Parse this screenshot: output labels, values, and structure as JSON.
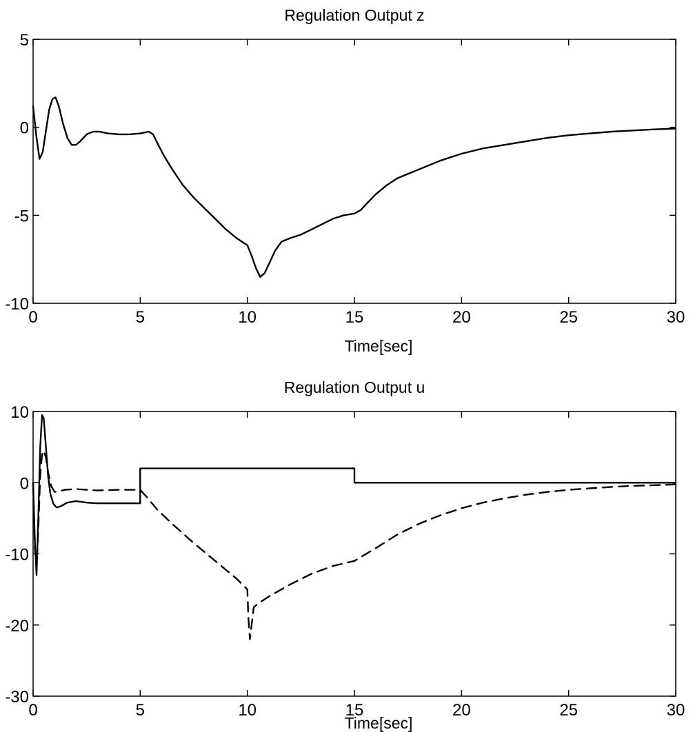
{
  "chart_data": [
    {
      "type": "line",
      "title": "Regulation Output z",
      "xlabel": "Time[sec]",
      "ylabel": "",
      "xlim": [
        0,
        30
      ],
      "ylim": [
        -10,
        5
      ],
      "xticks": [
        "0",
        "5",
        "10",
        "15",
        "20",
        "25",
        "30"
      ],
      "yticks": [
        "5",
        "0",
        "-5",
        "-10"
      ],
      "grid": false,
      "series": [
        {
          "style": "solid",
          "color": "#000000",
          "x": [
            0,
            0.15,
            0.3,
            0.45,
            0.6,
            0.75,
            0.9,
            1.05,
            1.2,
            1.4,
            1.6,
            1.8,
            2.0,
            2.2,
            2.5,
            2.8,
            3.1,
            3.5,
            4.0,
            4.5,
            5.0,
            5.2,
            5.4,
            5.6,
            5.8,
            6.1,
            6.5,
            7.0,
            7.5,
            8.0,
            8.5,
            9.0,
            9.5,
            10.0,
            10.2,
            10.4,
            10.6,
            10.8,
            11.0,
            11.3,
            11.6,
            12.0,
            12.5,
            13.0,
            13.5,
            14.0,
            14.5,
            15.0,
            15.3,
            15.6,
            16.0,
            16.5,
            17.0,
            18.0,
            19.0,
            20.0,
            21.0,
            22.0,
            23.0,
            24.0,
            25.0,
            26.0,
            27.0,
            28.0,
            29.0,
            30.0
          ],
          "y": [
            1.2,
            -0.5,
            -1.8,
            -1.4,
            -0.2,
            1.0,
            1.6,
            1.7,
            1.2,
            0.2,
            -0.6,
            -1.0,
            -1.0,
            -0.8,
            -0.4,
            -0.25,
            -0.25,
            -0.35,
            -0.4,
            -0.4,
            -0.35,
            -0.3,
            -0.25,
            -0.4,
            -0.9,
            -1.6,
            -2.4,
            -3.3,
            -4.0,
            -4.6,
            -5.2,
            -5.8,
            -6.3,
            -6.7,
            -7.3,
            -8.0,
            -8.5,
            -8.3,
            -7.8,
            -7.0,
            -6.5,
            -6.3,
            -6.1,
            -5.8,
            -5.5,
            -5.2,
            -5.0,
            -4.9,
            -4.7,
            -4.3,
            -3.8,
            -3.3,
            -2.9,
            -2.4,
            -1.9,
            -1.5,
            -1.2,
            -1.0,
            -0.8,
            -0.6,
            -0.45,
            -0.35,
            -0.25,
            -0.18,
            -0.12,
            -0.07
          ]
        }
      ]
    },
    {
      "type": "line",
      "title": "Regulation Output u",
      "xlabel": "Time[sec]",
      "ylabel": "",
      "xlim": [
        0,
        30
      ],
      "ylim": [
        -30,
        10
      ],
      "xticks": [
        "0",
        "5",
        "10",
        "15",
        "20",
        "25",
        "30"
      ],
      "yticks": [
        "10",
        "0",
        "-10",
        "-20",
        "-30"
      ],
      "grid": false,
      "series": [
        {
          "style": "solid",
          "color": "#000000",
          "x": [
            0,
            0.08,
            0.16,
            0.25,
            0.33,
            0.42,
            0.5,
            0.6,
            0.7,
            0.8,
            0.95,
            1.1,
            1.3,
            1.6,
            2.0,
            2.5,
            3.0,
            4.0,
            5.0,
            5.0,
            6.0,
            8.0,
            10.0,
            12.0,
            15.0,
            15.0,
            18.0,
            20.0,
            25.0,
            30.0
          ],
          "y": [
            0,
            -8,
            -13,
            -4,
            5,
            9.5,
            9,
            5,
            1,
            -1.5,
            -3,
            -3.5,
            -3.3,
            -2.8,
            -2.6,
            -2.8,
            -2.9,
            -2.9,
            -2.9,
            2,
            2,
            2,
            2,
            2,
            2,
            0,
            0,
            0,
            0,
            0
          ]
        },
        {
          "style": "dashed",
          "color": "#000000",
          "x": [
            0,
            0.08,
            0.16,
            0.25,
            0.33,
            0.42,
            0.5,
            0.6,
            0.7,
            0.85,
            1.0,
            1.2,
            1.5,
            2.0,
            2.5,
            3.0,
            4.0,
            5.0,
            5.3,
            5.8,
            6.5,
            7.5,
            8.5,
            9.5,
            10.0,
            10.05,
            10.12,
            10.2,
            10.3,
            10.5,
            11.0,
            12.0,
            13.0,
            14.0,
            15.0,
            16.0,
            17.0,
            18.0,
            19.0,
            20.0,
            21.0,
            22.0,
            23.0,
            24.0,
            25.0,
            26.0,
            27.0,
            28.0,
            29.0,
            30.0
          ],
          "y": [
            0,
            -9,
            -12,
            -6,
            1,
            4,
            4.5,
            3.5,
            1.5,
            -0.5,
            -1.3,
            -1.2,
            -1.0,
            -0.9,
            -1.0,
            -1.1,
            -1.0,
            -1.0,
            -2.0,
            -3.8,
            -5.8,
            -8.5,
            -11.0,
            -13.5,
            -15.0,
            -19.0,
            -22.0,
            -20.0,
            -17.5,
            -17.0,
            -16.0,
            -14.3,
            -12.8,
            -11.7,
            -11.0,
            -9.2,
            -7.3,
            -5.8,
            -4.6,
            -3.6,
            -2.8,
            -2.2,
            -1.7,
            -1.3,
            -1.0,
            -0.8,
            -0.6,
            -0.45,
            -0.35,
            -0.25
          ]
        }
      ]
    }
  ]
}
